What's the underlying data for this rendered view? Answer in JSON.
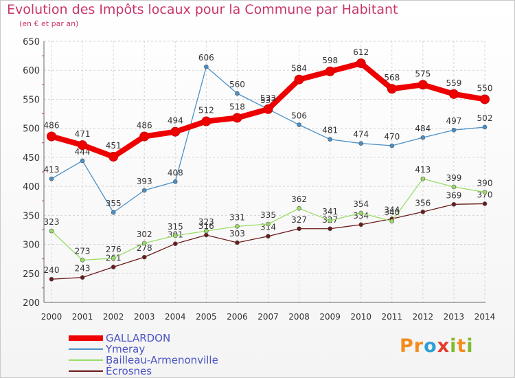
{
  "title": "Evolution des Impôts locaux pour la Commune par Habitant",
  "subtitle": "(en € et par an)",
  "logo": {
    "text": "Proxiti",
    "letters": [
      "P",
      "r",
      "o",
      "x",
      "i",
      "t",
      "i"
    ],
    "colors": [
      "#f28c1e",
      "#f28c1e",
      "#2c9fd9",
      "#e33b2e",
      "#7dbb2f",
      "#f28c1e",
      "#7dbb2f"
    ]
  },
  "chart_data": {
    "type": "line",
    "x": [
      "2000",
      "2001",
      "2002",
      "2003",
      "2004",
      "2005",
      "2006",
      "2007",
      "2008",
      "2009",
      "2010",
      "2011",
      "2012",
      "2013",
      "2014"
    ],
    "ylim": [
      200,
      650
    ],
    "yticks": [
      200,
      250,
      300,
      350,
      400,
      450,
      500,
      550,
      600,
      650
    ],
    "grid": true,
    "legend_position": "bottom-left",
    "series": [
      {
        "name": "GALLARDON",
        "color": "#ee0000",
        "values": [
          486,
          471,
          451,
          486,
          494,
          512,
          518,
          533,
          584,
          598,
          612,
          568,
          575,
          559,
          550
        ]
      },
      {
        "name": "Ymeray",
        "color": "#4a90c8",
        "values": [
          413,
          444,
          355,
          393,
          408,
          606,
          560,
          533,
          506,
          481,
          474,
          470,
          484,
          497,
          502
        ]
      },
      {
        "name": "Bailleau-Armenonville",
        "color": "#99dd66",
        "values": [
          323,
          273,
          276,
          302,
          315,
          323,
          331,
          335,
          362,
          341,
          354,
          340,
          413,
          399,
          390
        ]
      },
      {
        "name": "Écrosnes",
        "color": "#6b1a1a",
        "values": [
          240,
          243,
          261,
          278,
          301,
          316,
          303,
          314,
          327,
          327,
          334,
          344,
          356,
          369,
          370
        ]
      }
    ]
  }
}
